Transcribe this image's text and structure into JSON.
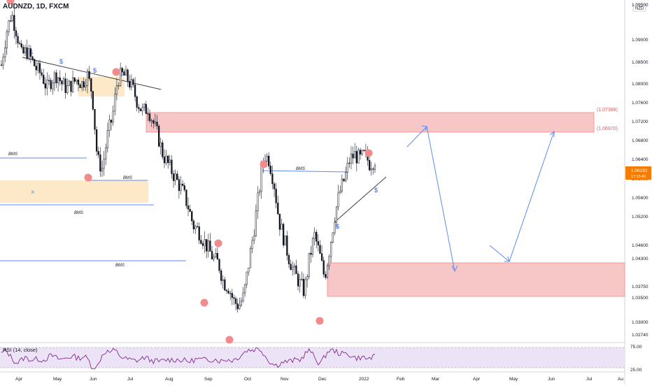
{
  "header": {
    "symbol_title": "AUDNZD, 1D, FXCM",
    "currency_badge": "NZD"
  },
  "price_scale": {
    "labels": [
      "1.09500",
      "1.09000",
      "1.08500",
      "1.08000",
      "1.07600",
      "1.07200",
      "1.06800",
      "1.06400",
      "1.06000",
      "1.05600",
      "1.05200",
      "1.04600",
      "1.04300",
      "1.03750",
      "1.03500",
      "1.03000",
      "1.02740"
    ],
    "current_price_label": "1.06192",
    "current_price_sub": "17:16:41"
  },
  "time_axis": {
    "labels": [
      "Apr",
      "May",
      "Jun",
      "Jul",
      "Aug",
      "Sep",
      "Oct",
      "Nov",
      "Dec",
      "2022",
      "Feb",
      "Mar",
      "Apr",
      "May",
      "Jun",
      "Jul",
      "Au"
    ]
  },
  "annotations": {
    "bms_labels": [
      "BMS",
      "BMS",
      "BMS",
      "BMS",
      "BMS"
    ],
    "dollar_marks": [
      "$",
      "$",
      "$",
      "$",
      "$",
      "$"
    ],
    "x_mark": "×",
    "zone_upper_labels": [
      "(1.07388)",
      "(1.06970)"
    ]
  },
  "rsi": {
    "title": "RSI (14, close)",
    "levels": [
      "75.00",
      "25.00"
    ]
  },
  "colors": {
    "up_candle": "#131722",
    "down_candle": "#131722",
    "trend_arrow": "#5b8def",
    "red_zone": "#f7b4b4",
    "orange_zone": "#fde8c8",
    "pivot_dot": "#f28b8b",
    "rsi_line": "#7e2a8e",
    "rsi_band": "#ede3f7",
    "price_tag": "#f57c00"
  },
  "chart_data": {
    "type": "candlestick",
    "title": "AUDNZD, 1D, FXCM",
    "ylim": [
      1.025,
      1.095
    ],
    "close_series_approx": [
      1.082,
      1.089,
      1.093,
      1.089,
      1.084,
      1.085,
      1.083,
      1.081,
      1.08,
      1.077,
      1.079,
      1.08,
      1.078,
      1.077,
      1.078,
      1.079,
      1.078,
      1.08,
      1.076,
      1.062,
      1.06,
      1.067,
      1.071,
      1.079,
      1.08,
      1.079,
      1.077,
      1.074,
      1.072,
      1.073,
      1.07,
      1.067,
      1.063,
      1.061,
      1.059,
      1.057,
      1.055,
      1.052,
      1.048,
      1.047,
      1.045,
      1.043,
      1.041,
      1.04,
      1.036,
      1.035,
      1.032,
      1.031,
      1.033,
      1.04,
      1.047,
      1.055,
      1.063,
      1.062,
      1.057,
      1.049,
      1.045,
      1.041,
      1.038,
      1.036,
      1.034,
      1.041,
      1.046,
      1.042,
      1.037,
      1.043,
      1.05,
      1.055,
      1.058,
      1.062,
      1.063,
      1.062,
      1.063,
      1.061,
      1.062
    ]
  }
}
